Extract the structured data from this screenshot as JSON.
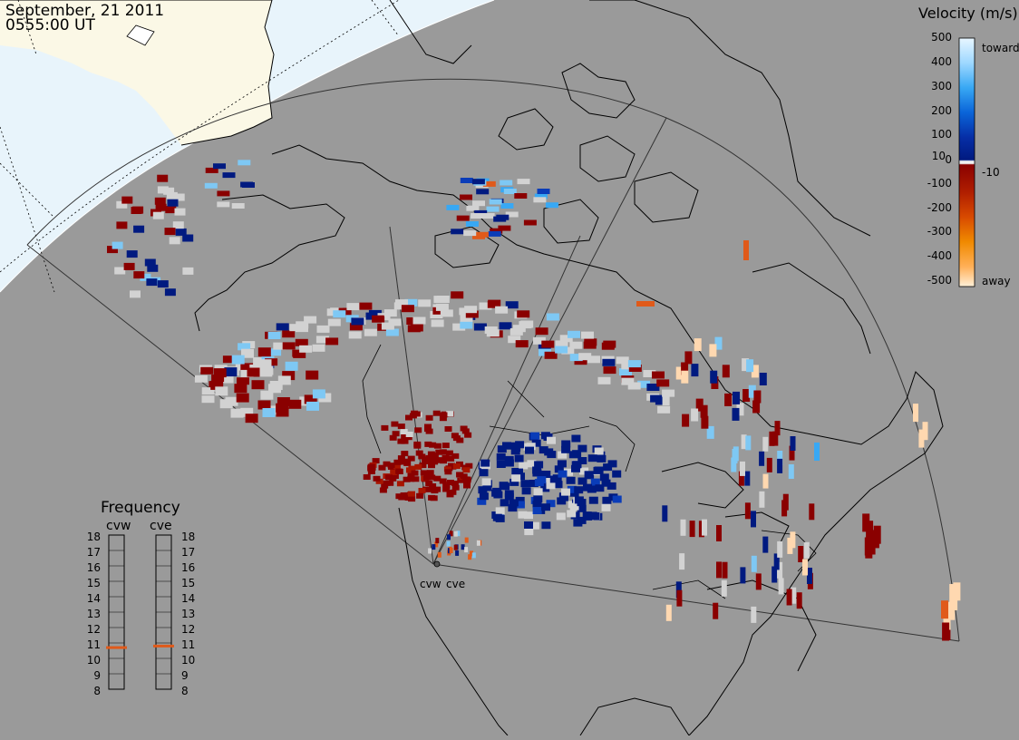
{
  "header": {
    "date": "September, 21 2011",
    "time": "0555:00 UT"
  },
  "colors": {
    "background_gray": "#9a9a9a",
    "daylight_fill": "#e8f4fb",
    "land_fill": "#fbf8e6",
    "low_velocity_gray": "#d2d2d2",
    "frequency_marker": "#e05a1a"
  },
  "velocity_scale": {
    "title": "Velocity (m/s)",
    "ticks": [
      "500",
      "400",
      "300",
      "200",
      "100",
      "10",
      "0",
      "-10",
      "-100",
      "-200",
      "-300",
      "-400",
      "-500"
    ],
    "toward_label": "toward",
    "away_label": "away",
    "gradient": [
      "#e8f6ff",
      "#9ed8ff",
      "#38a8f4",
      "#0a64d8",
      "#062ea6",
      "#001a80",
      "#f0f0f0",
      "#8a0000",
      "#b01e00",
      "#d84a00",
      "#f08a00",
      "#ffb058",
      "#fff0d8"
    ]
  },
  "frequency_panel": {
    "title": "Frequency",
    "left_radar": "cvw",
    "right_radar": "cve",
    "scale_labels": [
      "18",
      "17",
      "16",
      "15",
      "14",
      "13",
      "12",
      "11",
      "10",
      "9",
      "8"
    ],
    "cvw_mhz": 10.7,
    "cve_mhz": 10.8
  },
  "radars": {
    "west_label": "cvw",
    "east_label": "cve"
  }
}
